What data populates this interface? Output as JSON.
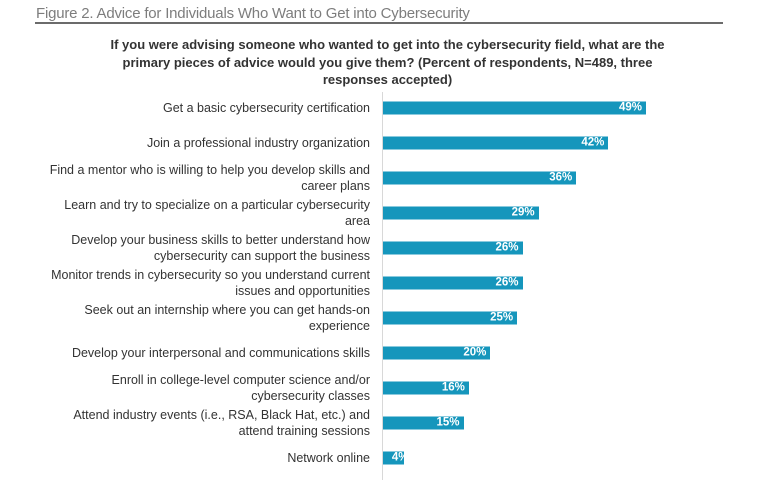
{
  "figure_title": "Figure 2. Advice for Individuals Who Want to Get into Cybersecurity",
  "chart_data": {
    "type": "bar",
    "orientation": "horizontal",
    "title": "If you were advising someone who wanted to get into the cybersecurity field, what are the primary pieces of advice would you give them? (Percent of respondents, N=489, three responses accepted)",
    "categories": [
      "Get a basic cybersecurity certification",
      "Join a professional industry organization",
      "Find a mentor who is willing to help you develop skills and career plans",
      "Learn and try to specialize on a particular cybersecurity area",
      "Develop your business skills to better understand how cybersecurity can support the business",
      "Monitor trends in cybersecurity so you understand current issues and opportunities",
      "Seek out an internship where you can get hands-on experience",
      "Develop your interpersonal and communications skills",
      "Enroll in college-level computer science and/or cybersecurity classes",
      "Attend industry events (i.e., RSA, Black Hat, etc.) and attend training sessions",
      "Network online"
    ],
    "values": [
      49,
      42,
      36,
      29,
      26,
      26,
      25,
      20,
      16,
      15,
      4
    ],
    "labels": [
      "49%",
      "42%",
      "36%",
      "29%",
      "26%",
      "26%",
      "25%",
      "20%",
      "16%",
      "15%",
      "4%"
    ],
    "xlim": [
      0,
      100
    ],
    "color": "#1596bc"
  }
}
